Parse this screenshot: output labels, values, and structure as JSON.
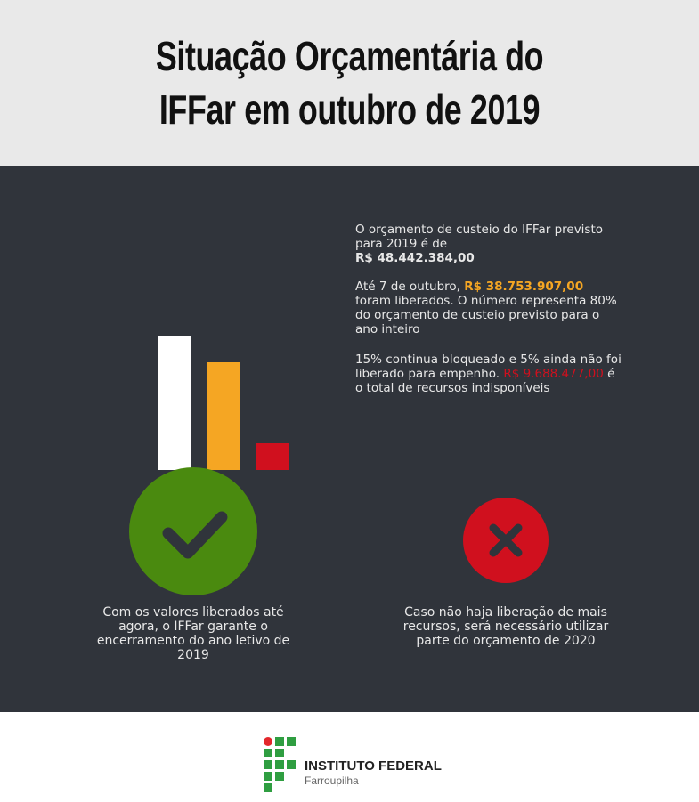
{
  "title": {
    "line1": "Situação Orçamentária do",
    "line2": "IFFar em outubro de 2019"
  },
  "bars": [
    {
      "value": 48442384.0,
      "color": "#ffffff"
    },
    {
      "value": 38753907.0,
      "color": "#f5a623"
    },
    {
      "value": 9688477.0,
      "color": "#d0101e"
    }
  ],
  "info": {
    "p1": {
      "text": "O orçamento de custeio do IFFar previsto para 2019 é de",
      "amount": "R$ 48.442.384,00"
    },
    "p2": {
      "pre": "Até 7 de outubro,",
      "amount": "R$ 38.753.907,00",
      "post": "foram liberados. O número representa 80% do orçamento de custeio previsto para o ano inteiro"
    },
    "p3": {
      "pre": "15% continua bloqueado e 5% ainda não foi liberado para empenho.",
      "amount": "R$ 9.688.477,00",
      "post": "é o total de recursos indisponíveis"
    }
  },
  "left": {
    "icon": "check-icon",
    "color": "#4a8a0f",
    "caption": "Com os valores liberados até agora, o IFFar garante o encerramento do ano letivo de 2019"
  },
  "right": {
    "icon": "x-icon",
    "color": "#d0101e",
    "caption": "Caso não haja liberação de mais recursos, será necessário utilizar parte do orçamento de 2020"
  },
  "footer": {
    "name": "INSTITUTO FEDERAL",
    "campus": "Farroupilha"
  }
}
